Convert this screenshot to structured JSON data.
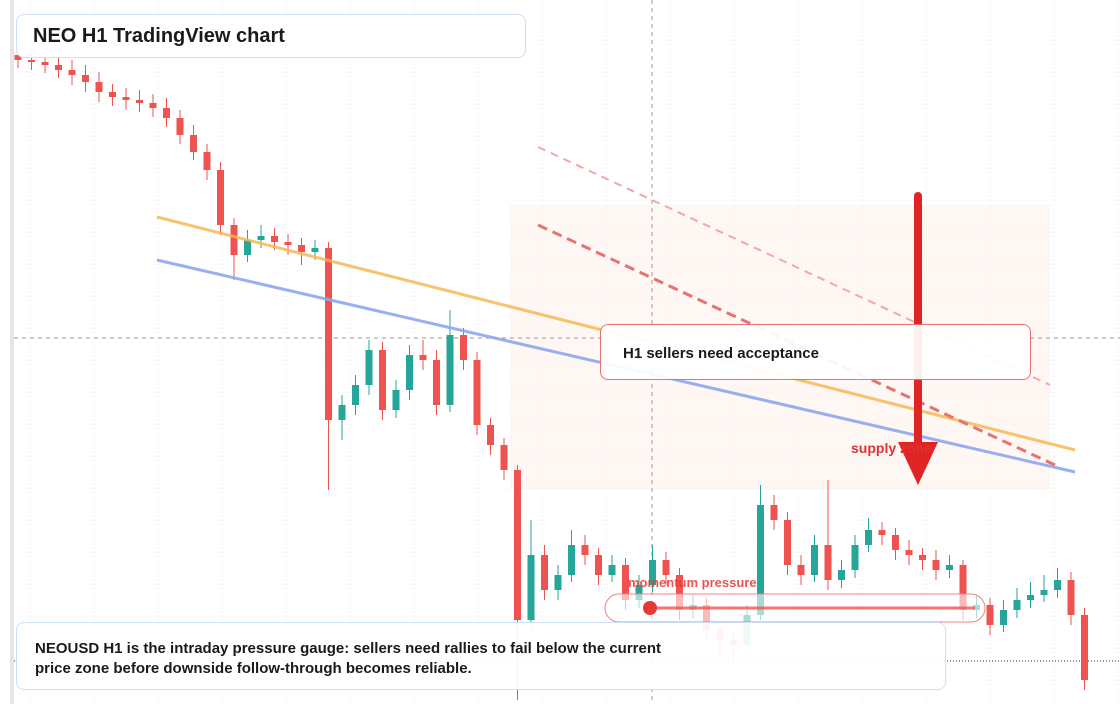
{
  "chart_data": {
    "type": "candlestick",
    "title": "NEO H1 TradingView chart",
    "annotations": {
      "note": "H1 sellers need acceptance",
      "zone": "supply zone",
      "gauge": "momentum pressure",
      "caption": "NEOUSD H1 is the intraday pressure gauge: sellers need rallies to fail below the current price zone before downside follow-through becomes reliable."
    },
    "up_color": "#26a69a",
    "down_color": "#ef5350",
    "ylim": [
      0,
      700
    ],
    "open": [
      645,
      640,
      638,
      635,
      630,
      625,
      618,
      608,
      603,
      600,
      597,
      592,
      582,
      565,
      548,
      530,
      475,
      445,
      460,
      464,
      458,
      455,
      448,
      452,
      280,
      295,
      315,
      350,
      290,
      310,
      345,
      340,
      295,
      365,
      340,
      275,
      255,
      230,
      80,
      145,
      110,
      125,
      155,
      145,
      125,
      135,
      100,
      115,
      140,
      125,
      90,
      95,
      70,
      60,
      55,
      85,
      195,
      180,
      135,
      125,
      155,
      120,
      130,
      155,
      170,
      165,
      150,
      145,
      140,
      130,
      135,
      90,
      95,
      75,
      90,
      100,
      105,
      110,
      120,
      85
    ],
    "high": [
      655,
      648,
      646,
      644,
      640,
      635,
      628,
      616,
      612,
      610,
      606,
      602,
      590,
      575,
      556,
      538,
      482,
      470,
      475,
      472,
      466,
      462,
      460,
      458,
      305,
      325,
      360,
      358,
      320,
      355,
      360,
      350,
      390,
      372,
      348,
      282,
      262,
      235,
      180,
      155,
      135,
      170,
      165,
      152,
      145,
      142,
      125,
      155,
      148,
      132,
      105,
      102,
      78,
      68,
      95,
      215,
      205,
      188,
      145,
      165,
      220,
      140,
      165,
      182,
      178,
      172,
      160,
      152,
      150,
      145,
      140,
      105,
      102,
      100,
      112,
      118,
      125,
      132,
      128,
      92
    ],
    "low": [
      632,
      630,
      627,
      622,
      615,
      608,
      598,
      594,
      590,
      588,
      583,
      573,
      556,
      540,
      520,
      465,
      420,
      438,
      452,
      450,
      445,
      435,
      440,
      210,
      260,
      285,
      305,
      280,
      282,
      300,
      330,
      285,
      288,
      330,
      265,
      245,
      220,
      0,
      70,
      100,
      100,
      118,
      135,
      115,
      118,
      90,
      92,
      108,
      115,
      80,
      82,
      60,
      45,
      40,
      48,
      80,
      170,
      125,
      115,
      118,
      110,
      112,
      122,
      148,
      155,
      140,
      135,
      130,
      120,
      122,
      80,
      82,
      65,
      68,
      82,
      92,
      98,
      102,
      75,
      10
    ],
    "close": [
      640,
      638,
      635,
      630,
      625,
      618,
      608,
      603,
      600,
      597,
      592,
      582,
      565,
      548,
      530,
      475,
      445,
      460,
      464,
      458,
      455,
      448,
      452,
      280,
      295,
      315,
      350,
      290,
      310,
      345,
      340,
      295,
      365,
      340,
      275,
      255,
      230,
      80,
      145,
      110,
      125,
      155,
      145,
      125,
      135,
      100,
      115,
      140,
      125,
      90,
      95,
      70,
      60,
      55,
      85,
      195,
      180,
      135,
      125,
      155,
      120,
      130,
      155,
      170,
      165,
      150,
      145,
      140,
      130,
      135,
      90,
      95,
      75,
      90,
      100,
      105,
      110,
      120,
      85,
      20
    ]
  }
}
